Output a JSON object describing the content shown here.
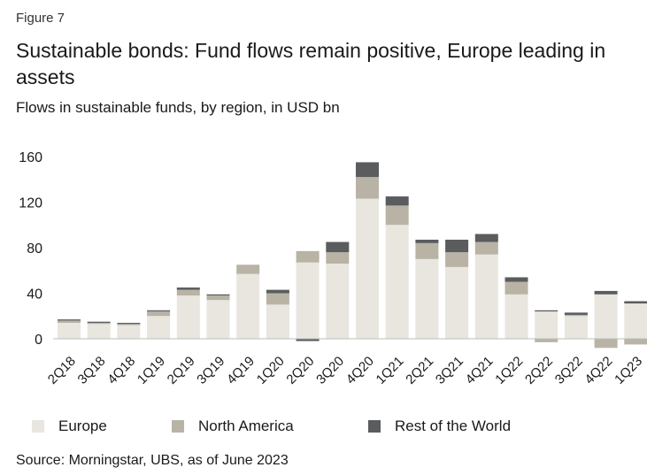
{
  "figure_label": "Figure 7",
  "title": "Sustainable bonds: Fund flows remain positive, Europe leading in assets",
  "subtitle": "Flows in sustainable funds, by region, in USD bn",
  "source": "Source: Morningstar, UBS, as of June 2023",
  "chart_data": {
    "type": "bar",
    "stacked": true,
    "categories": [
      "2Q18",
      "3Q18",
      "4Q18",
      "1Q19",
      "2Q19",
      "3Q19",
      "4Q19",
      "1Q20",
      "2Q20",
      "3Q20",
      "4Q20",
      "1Q21",
      "2Q21",
      "3Q21",
      "4Q21",
      "1Q22",
      "2Q22",
      "3Q22",
      "4Q22",
      "1Q23"
    ],
    "series": [
      {
        "name": "Europe",
        "color": "#e8e6df",
        "values": [
          14,
          13,
          12,
          20,
          38,
          34,
          57,
          30,
          67,
          66,
          123,
          100,
          70,
          63,
          74,
          39,
          24,
          20,
          39,
          31
        ]
      },
      {
        "name": "North America",
        "color": "#b8b3a5",
        "values": [
          2,
          1,
          1,
          4,
          5,
          4,
          8,
          10,
          10,
          10,
          19,
          17,
          14,
          13,
          11,
          11,
          -3,
          1,
          -8,
          -5
        ]
      },
      {
        "name": "Rest of the World",
        "color": "#5a5c5e",
        "values": [
          1,
          1,
          1,
          1,
          2,
          1,
          0,
          3,
          -2,
          9,
          13,
          8,
          3,
          11,
          7,
          4,
          1,
          2,
          3,
          2
        ]
      }
    ],
    "y_ticks": [
      0,
      40,
      80,
      120,
      160
    ],
    "ylim": [
      -10,
      165
    ],
    "legend_position": "bottom",
    "grid": false
  }
}
